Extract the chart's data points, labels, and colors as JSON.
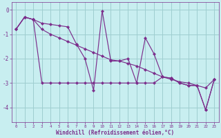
{
  "series1_x": [
    0,
    1,
    2,
    3,
    4,
    5,
    6,
    7,
    8,
    9,
    10,
    11,
    12,
    13,
    14,
    15,
    16,
    17,
    18,
    19,
    20,
    21,
    22,
    23
  ],
  "series1_y": [
    -0.8,
    -0.3,
    -0.4,
    -0.55,
    -0.6,
    -0.65,
    -0.7,
    -1.4,
    -2.0,
    -3.3,
    -0.05,
    -2.1,
    -2.1,
    -2.0,
    -3.0,
    -1.15,
    -1.8,
    -2.75,
    -2.8,
    -3.0,
    -3.1,
    -3.1,
    -4.1,
    -2.85
  ],
  "series2_x": [
    0,
    1,
    2,
    3,
    4,
    5,
    6,
    7,
    8,
    9,
    10,
    11,
    12,
    13,
    14,
    15,
    16,
    17,
    18,
    19,
    20,
    21,
    22,
    23
  ],
  "series2_y": [
    -0.8,
    -0.3,
    -0.4,
    -0.8,
    -1.0,
    -1.15,
    -1.3,
    -1.45,
    -1.6,
    -1.75,
    -1.9,
    -2.05,
    -2.1,
    -2.2,
    -2.3,
    -2.45,
    -2.6,
    -2.75,
    -2.85,
    -2.95,
    -3.0,
    -3.1,
    -3.2,
    -2.85
  ],
  "series3_x": [
    0,
    1,
    2,
    3,
    4,
    5,
    6,
    7,
    8,
    9,
    10,
    11,
    12,
    13,
    14,
    15,
    16,
    17,
    18,
    19,
    20,
    21,
    22,
    23
  ],
  "series3_y": [
    -0.8,
    -0.3,
    -0.4,
    -3.0,
    -3.0,
    -3.0,
    -3.0,
    -3.0,
    -3.0,
    -3.0,
    -3.0,
    -3.0,
    -3.0,
    -3.0,
    -3.0,
    -3.0,
    -3.0,
    -2.75,
    -2.8,
    -3.0,
    -3.1,
    -3.1,
    -4.1,
    -2.85
  ],
  "line_color": "#7B2D8B",
  "bg_color": "#C8EEF0",
  "grid_color": "#9ECDD0",
  "xlabel": "Windchill (Refroidissement éolien,°C)",
  "ylim": [
    -4.6,
    0.3
  ],
  "xlim": [
    -0.5,
    23.5
  ],
  "yticks": [
    0,
    -1,
    -2,
    -3,
    -4
  ],
  "xticks": [
    0,
    1,
    2,
    3,
    4,
    5,
    6,
    7,
    8,
    9,
    10,
    11,
    12,
    13,
    14,
    15,
    16,
    17,
    18,
    19,
    20,
    21,
    22,
    23
  ]
}
